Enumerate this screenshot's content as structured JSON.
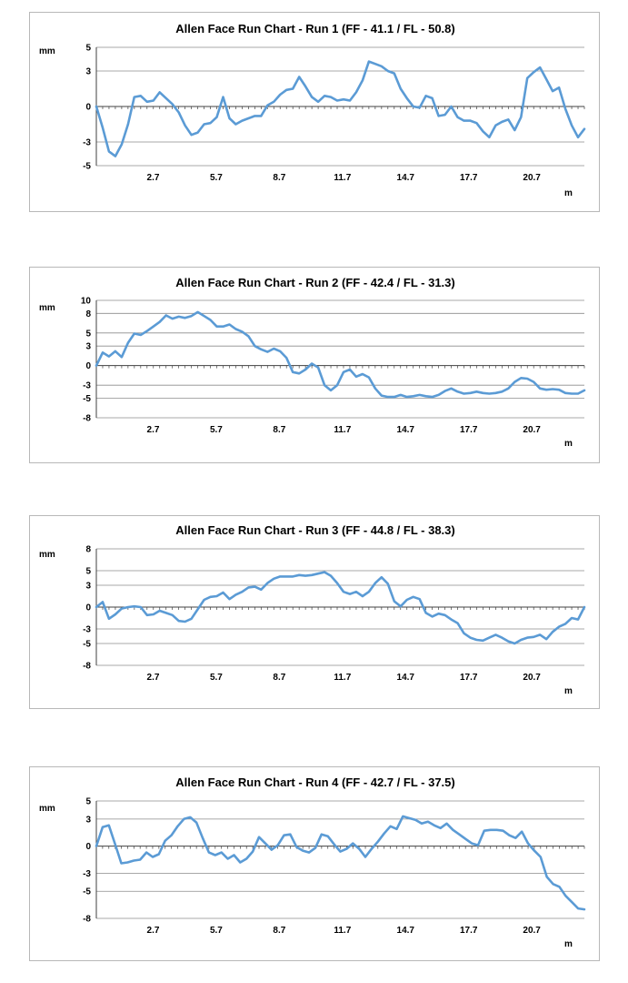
{
  "colors": {
    "line": "#5b9bd5",
    "grid": "#8c8c8c",
    "axis": "#404040",
    "border": "#b8b8b8"
  },
  "chart_data": [
    {
      "type": "line",
      "title": "Allen Face Run Chart - Run 1 (FF - 41.1 /  FL - 50.8)",
      "ylabel": "mm",
      "xlabel": "m",
      "ylim": [
        -5,
        5
      ],
      "xlim": [
        0,
        23.2
      ],
      "yticks": [
        5,
        3,
        0,
        -3,
        -5
      ],
      "ytick_labels": [
        "5",
        "3",
        "0",
        "-3",
        "-5"
      ],
      "xticks": [
        2.7,
        5.7,
        8.7,
        11.7,
        14.7,
        17.7,
        20.7
      ],
      "xtick_labels": [
        "2.7",
        "5.7",
        "8.7",
        "11.7",
        "14.7",
        "17.7",
        "20.7"
      ],
      "grid": true,
      "legend": "none",
      "series": [
        {
          "values": [
            0,
            -1.8,
            -3.8,
            -4.2,
            -3.2,
            -1.5,
            0.8,
            0.9,
            0.4,
            0.5,
            1.2,
            0.7,
            0.2,
            -0.5,
            -1.6,
            -2.4,
            -2.2,
            -1.5,
            -1.4,
            -0.9,
            0.8,
            -1.0,
            -1.5,
            -1.2,
            -1.0,
            -0.8,
            -0.8,
            0.1,
            0.4,
            1.0,
            1.4,
            1.5,
            2.5,
            1.7,
            0.8,
            0.4,
            0.9,
            0.8,
            0.5,
            0.6,
            0.5,
            1.2,
            2.2,
            3.8,
            3.6,
            3.4,
            3.0,
            2.8,
            1.5,
            0.7,
            0.0,
            -0.1,
            0.9,
            0.7,
            -0.8,
            -0.7,
            0.0,
            -0.9,
            -1.2,
            -1.2,
            -1.4,
            -2.1,
            -2.6,
            -1.6,
            -1.3,
            -1.1,
            -2.0,
            -0.9,
            2.4,
            2.9,
            3.3,
            2.3,
            1.3,
            1.6,
            -0.2,
            -1.6,
            -2.6,
            -1.9
          ]
        }
      ]
    },
    {
      "type": "line",
      "title": "Allen Face Run Chart - Run 2 (FF - 42.4 /  FL - 31.3)",
      "ylabel": "mm",
      "xlabel": "m",
      "ylim": [
        -8,
        10
      ],
      "xlim": [
        0,
        23.2
      ],
      "yticks": [
        10,
        8,
        5,
        3,
        0,
        -3,
        -5,
        -8
      ],
      "ytick_labels": [
        "10",
        "8",
        "5",
        "3",
        "0",
        "-3",
        "-5",
        "-8"
      ],
      "xticks": [
        2.7,
        5.7,
        8.7,
        11.7,
        14.7,
        17.7,
        20.7
      ],
      "xtick_labels": [
        "2.7",
        "5.7",
        "8.7",
        "11.7",
        "14.7",
        "17.7",
        "20.7"
      ],
      "grid": true,
      "legend": "none",
      "series": [
        {
          "values": [
            0,
            2.0,
            1.4,
            2.2,
            1.3,
            3.5,
            4.9,
            4.7,
            5.3,
            6.0,
            6.7,
            7.7,
            7.2,
            7.5,
            7.3,
            7.6,
            8.2,
            7.6,
            7.0,
            6.0,
            6.0,
            6.3,
            5.6,
            5.2,
            4.5,
            3.0,
            2.5,
            2.1,
            2.6,
            2.2,
            1.2,
            -1.0,
            -1.2,
            -0.6,
            0.3,
            -0.3,
            -3.0,
            -3.8,
            -3.0,
            -1.0,
            -0.6,
            -1.7,
            -1.3,
            -1.8,
            -3.5,
            -4.6,
            -4.8,
            -4.8,
            -4.5,
            -4.8,
            -4.7,
            -4.5,
            -4.7,
            -4.8,
            -4.5,
            -3.9,
            -3.5,
            -4.0,
            -4.3,
            -4.2,
            -4.0,
            -4.2,
            -4.3,
            -4.2,
            -4.0,
            -3.5,
            -2.5,
            -1.9,
            -2.0,
            -2.5,
            -3.5,
            -3.7,
            -3.6,
            -3.7,
            -4.2,
            -4.3,
            -4.3,
            -3.8
          ]
        }
      ]
    },
    {
      "type": "line",
      "title": "Allen Face Run Chart - Run 3 (FF - 44.8 /  FL - 38.3)",
      "ylabel": "mm",
      "xlabel": "m",
      "ylim": [
        -8,
        8
      ],
      "xlim": [
        0,
        23.2
      ],
      "yticks": [
        8,
        5,
        3,
        0,
        -3,
        -5,
        -8
      ],
      "ytick_labels": [
        "8",
        "5",
        "3",
        "0",
        "-3",
        "-5",
        "-8"
      ],
      "xticks": [
        2.7,
        5.7,
        8.7,
        11.7,
        14.7,
        17.7,
        20.7
      ],
      "xtick_labels": [
        "2.7",
        "5.7",
        "8.7",
        "11.7",
        "14.7",
        "17.7",
        "20.7"
      ],
      "grid": true,
      "legend": "none",
      "series": [
        {
          "values": [
            0,
            0.7,
            -1.6,
            -1.0,
            -0.2,
            0.0,
            0.1,
            0.0,
            -1.1,
            -1.0,
            -0.5,
            -0.8,
            -1.1,
            -1.9,
            -2.0,
            -1.6,
            -0.3,
            1.0,
            1.4,
            1.5,
            2.0,
            1.1,
            1.7,
            2.1,
            2.7,
            2.8,
            2.4,
            3.3,
            3.9,
            4.2,
            4.2,
            4.2,
            4.4,
            4.3,
            4.4,
            4.6,
            4.8,
            4.3,
            3.3,
            2.1,
            1.8,
            2.1,
            1.5,
            2.1,
            3.3,
            4.1,
            3.2,
            0.8,
            0.1,
            1.0,
            1.4,
            1.1,
            -0.8,
            -1.3,
            -0.9,
            -1.1,
            -1.7,
            -2.2,
            -3.6,
            -4.2,
            -4.5,
            -4.6,
            -4.2,
            -3.8,
            -4.2,
            -4.7,
            -5.0,
            -4.5,
            -4.2,
            -4.1,
            -3.8,
            -4.4,
            -3.4,
            -2.7,
            -2.3,
            -1.5,
            -1.7,
            0.0
          ]
        }
      ]
    },
    {
      "type": "line",
      "title": "Allen Face Run Chart - Run 4 (FF - 42.7 /  FL - 37.5)",
      "ylabel": "mm",
      "xlabel": "m",
      "ylim": [
        -8,
        5
      ],
      "xlim": [
        0,
        23.2
      ],
      "yticks": [
        5,
        3,
        0,
        -3,
        -5,
        -8
      ],
      "ytick_labels": [
        "5",
        "3",
        "0",
        "-3",
        "-5",
        "-8"
      ],
      "xticks": [
        2.7,
        5.7,
        8.7,
        11.7,
        14.7,
        17.7,
        20.7
      ],
      "xtick_labels": [
        "2.7",
        "5.7",
        "8.7",
        "11.7",
        "14.7",
        "17.7",
        "20.7"
      ],
      "grid": true,
      "legend": "none",
      "series": [
        {
          "values": [
            0,
            2.1,
            2.3,
            0.2,
            -1.9,
            -1.8,
            -1.6,
            -1.5,
            -0.7,
            -1.2,
            -0.9,
            0.6,
            1.2,
            2.2,
            3.0,
            3.2,
            2.6,
            0.9,
            -0.7,
            -1.0,
            -0.7,
            -1.4,
            -1.0,
            -1.8,
            -1.4,
            -0.6,
            1.0,
            0.3,
            -0.4,
            0.1,
            1.2,
            1.3,
            -0.1,
            -0.5,
            -0.7,
            -0.2,
            1.3,
            1.1,
            0.2,
            -0.6,
            -0.3,
            0.3,
            -0.3,
            -1.2,
            -0.3,
            0.5,
            1.4,
            2.2,
            1.9,
            3.3,
            3.1,
            2.9,
            2.5,
            2.7,
            2.3,
            2.0,
            2.5,
            1.8,
            1.3,
            0.8,
            0.3,
            0.1,
            1.7,
            1.8,
            1.8,
            1.7,
            1.2,
            0.9,
            1.6,
            0.3,
            -0.5,
            -1.2,
            -3.4,
            -4.2,
            -4.5,
            -5.5,
            -6.2,
            -6.9,
            -7.0
          ]
        }
      ]
    }
  ]
}
